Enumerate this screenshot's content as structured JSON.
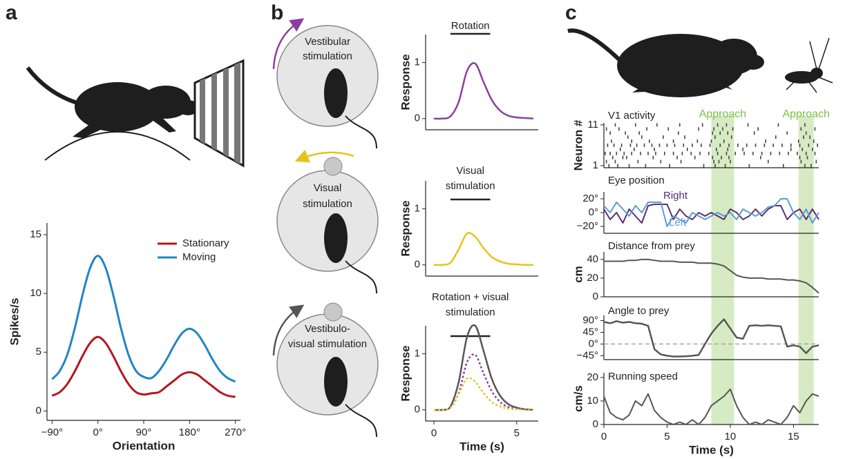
{
  "panel_labels": [
    "a",
    "b",
    "c"
  ],
  "diagram": {
    "circles": [
      [
        "Vestibular",
        "stimulation"
      ],
      [
        "Visual",
        "stimulation"
      ],
      [
        "Vestibulo-",
        "visual stimulation"
      ]
    ]
  },
  "chart_data": [
    {
      "type": "line",
      "xlabel": "Orientation",
      "ylabel": "Spikes/s",
      "legend": "upper right",
      "xlim": [
        -100,
        280
      ],
      "ylim": [
        -0.8,
        16
      ],
      "xticks": [
        {
          "value": -90,
          "label": "−90°"
        },
        {
          "value": 0,
          "label": "0°"
        },
        {
          "value": 90,
          "label": "90°"
        },
        {
          "value": 180,
          "label": "180°"
        },
        {
          "value": 270,
          "label": "270°"
        }
      ],
      "yticks": [
        0,
        5,
        10,
        15
      ],
      "x": [
        -90,
        -75,
        -60,
        -45,
        -30,
        -15,
        0,
        15,
        30,
        45,
        60,
        75,
        90,
        105,
        120,
        135,
        150,
        165,
        180,
        195,
        210,
        225,
        240,
        255,
        270
      ],
      "series": [
        {
          "name": "Stationary",
          "color": "#b5161e",
          "values": [
            1.3,
            1.6,
            2.3,
            3.4,
            4.7,
            5.8,
            6.3,
            5.8,
            4.7,
            3.4,
            2.3,
            1.6,
            1.4,
            1.5,
            1.6,
            2.1,
            2.6,
            3.1,
            3.3,
            3.1,
            2.6,
            2.1,
            1.6,
            1.3,
            1.2
          ]
        },
        {
          "name": "Moving",
          "color": "#1f84c6",
          "values": [
            2.7,
            3.4,
            4.8,
            7.1,
            9.9,
            12.2,
            13.2,
            12.2,
            9.9,
            7.1,
            4.8,
            3.4,
            2.9,
            2.8,
            3.4,
            4.4,
            5.6,
            6.6,
            7.0,
            6.6,
            5.6,
            4.4,
            3.4,
            2.8,
            2.5
          ]
        }
      ]
    },
    {
      "type": "line",
      "title": [
        "Rotation"
      ],
      "ylabel": "Response",
      "bar_x": [
        1,
        3.4
      ],
      "xlim": [
        -0.5,
        6.3
      ],
      "ylim": [
        -0.2,
        1.5
      ],
      "yticks": [
        0,
        1
      ],
      "x": [
        0,
        0.5,
        1,
        1.5,
        2,
        2.5,
        3,
        3.5,
        4,
        4.5,
        5,
        5.5,
        6
      ],
      "series": [
        {
          "color": "#8a3fa0",
          "values": [
            0,
            0,
            0.04,
            0.3,
            0.85,
            0.98,
            0.65,
            0.33,
            0.14,
            0.05,
            0.02,
            0.01,
            0
          ]
        }
      ]
    },
    {
      "type": "line",
      "title": [
        "Visual",
        "stimulation"
      ],
      "ylabel": "Response",
      "bar_x": [
        1,
        3.4
      ],
      "xlim": [
        -0.5,
        6.3
      ],
      "ylim": [
        -0.2,
        1.5
      ],
      "yticks": [
        0,
        1
      ],
      "x": [
        0,
        0.5,
        1,
        1.5,
        2,
        2.5,
        3,
        3.5,
        4,
        4.5,
        5,
        5.5,
        6
      ],
      "series": [
        {
          "color": "#e8c21c",
          "values": [
            0,
            0,
            0.04,
            0.28,
            0.56,
            0.5,
            0.3,
            0.14,
            0.06,
            0.02,
            0.01,
            0,
            0
          ]
        }
      ]
    },
    {
      "type": "line",
      "title": [
        "Rotation + visual",
        "stimulation"
      ],
      "ylabel": "Response",
      "xlabel": "Time (s)",
      "bar_x": [
        1,
        3.4
      ],
      "xlim": [
        -0.5,
        6.3
      ],
      "ylim": [
        -0.2,
        1.5
      ],
      "yticks": [
        0,
        1
      ],
      "xticks": [
        0,
        5
      ],
      "x": [
        0,
        0.5,
        1,
        1.5,
        2,
        2.5,
        3,
        3.5,
        4,
        4.5,
        5,
        5.5,
        6
      ],
      "series": [
        {
          "color": "#555555",
          "values": [
            0,
            0,
            0.06,
            0.5,
            1.3,
            1.5,
            1.05,
            0.55,
            0.25,
            0.1,
            0.04,
            0.01,
            0
          ]
        },
        {
          "color": "#8a3fa0",
          "dash": true,
          "values": [
            0,
            0,
            0.04,
            0.3,
            0.85,
            0.98,
            0.65,
            0.33,
            0.14,
            0.05,
            0.02,
            0.01,
            0
          ]
        },
        {
          "color": "#e8c21c",
          "dash": true,
          "values": [
            0,
            0,
            0.04,
            0.28,
            0.56,
            0.5,
            0.3,
            0.14,
            0.06,
            0.02,
            0.01,
            0,
            0
          ]
        }
      ]
    },
    {
      "type": "raster",
      "title": [
        "V1 activity"
      ],
      "ylabel": "Neuron #",
      "shaded": [
        [
          8.5,
          10.3
        ],
        [
          15.4,
          16.6
        ]
      ],
      "shade_label": "Approach",
      "shade_color": "#cfe8b8",
      "xlim": [
        0,
        17
      ],
      "ylim": [
        0.5,
        11.5
      ],
      "yticks": [
        1,
        11
      ],
      "spikes": [
        [
          0.4,
          1.1,
          2.0,
          3.3,
          5.2,
          7.9,
          8.8,
          9.6,
          11.5,
          14.2,
          15.9,
          16.4
        ],
        [
          0.2,
          0.9,
          2.7,
          4.5,
          6.1,
          8.7,
          9.1,
          10.0,
          13.0,
          15.6,
          16.8
        ],
        [
          0.7,
          1.5,
          1.8,
          3.9,
          5.8,
          7.2,
          8.6,
          9.3,
          9.9,
          12.4,
          15.5,
          16.1
        ],
        [
          0.1,
          0.5,
          1.0,
          1.6,
          2.2,
          2.9,
          3.5,
          4.1,
          4.8,
          5.5,
          6.2,
          6.9,
          7.6,
          8.3,
          9.0,
          9.7,
          10.4,
          11.1,
          11.8,
          12.5,
          13.2,
          13.9,
          14.6,
          15.3,
          16.0,
          16.7
        ],
        [
          1.3,
          2.4,
          4.0,
          6.6,
          8.9,
          9.8,
          11.0,
          14.8,
          15.7,
          16.5
        ],
        [
          0.3,
          0.8,
          1.4,
          2.1,
          2.6,
          3.2,
          3.8,
          4.4,
          5.0,
          5.6,
          6.3,
          7.0,
          7.7,
          8.4,
          9.2,
          9.9,
          10.6,
          11.3,
          12.0,
          12.7,
          13.4,
          14.1,
          14.8,
          15.5,
          16.2,
          16.9
        ],
        [
          0.6,
          2.2,
          3.6,
          5.5,
          7.4,
          8.5,
          9.5,
          12.8,
          15.4,
          16.6
        ],
        [
          1.9,
          3.0,
          4.7,
          6.4,
          8.8,
          10.1,
          13.6,
          15.8,
          16.3
        ],
        [
          0.5,
          1.7,
          2.8,
          5.9,
          8.6,
          9.2,
          9.8,
          11.9,
          14.5,
          16.0
        ],
        [
          0.2,
          1.2,
          3.4,
          5.1,
          7.5,
          8.7,
          9.4,
          10.2,
          12.2,
          15.6,
          16.7
        ],
        [
          0.9,
          2.5,
          4.2,
          6.0,
          7.8,
          9.0,
          9.7,
          11.4,
          13.8,
          15.9
        ]
      ]
    },
    {
      "type": "line",
      "title": [
        "Eye position"
      ],
      "xlim": [
        0,
        17
      ],
      "ylim": [
        -30,
        30
      ],
      "yticks": [
        {
          "value": -20,
          "label": "−20°"
        },
        {
          "value": 0,
          "label": "0°"
        },
        {
          "value": 20,
          "label": "20°"
        }
      ],
      "x": [
        0,
        0.5,
        1,
        1.5,
        2,
        2.5,
        3,
        3.5,
        4,
        4.5,
        5,
        5.5,
        6,
        6.5,
        7,
        7.5,
        8,
        8.5,
        9,
        9.5,
        10,
        10.5,
        11,
        11.5,
        12,
        12.5,
        13,
        13.5,
        14,
        14.5,
        15,
        15.5,
        16,
        16.5,
        17
      ],
      "series": [
        {
          "name": "Right",
          "color": "#5b2c6f",
          "values": [
            5,
            -10,
            0,
            -15,
            5,
            -5,
            -15,
            10,
            12,
            12,
            12,
            -10,
            5,
            -5,
            -10,
            0,
            -5,
            0,
            -5,
            -10,
            5,
            0,
            -10,
            -5,
            5,
            -5,
            5,
            10,
            10,
            -10,
            0,
            5,
            -10,
            5,
            -10
          ]
        },
        {
          "name": "Left",
          "color": "#5b9bd5",
          "values": [
            10,
            0,
            15,
            5,
            -5,
            10,
            0,
            15,
            15,
            15,
            -20,
            -5,
            -10,
            -15,
            0,
            -5,
            -10,
            -5,
            0,
            -5,
            0,
            -10,
            5,
            0,
            -5,
            0,
            8,
            10,
            20,
            20,
            0,
            -10,
            5,
            -15,
            0
          ]
        }
      ]
    },
    {
      "type": "line",
      "title": [
        "Distance from prey"
      ],
      "ylabel": "cm",
      "xlim": [
        0,
        17
      ],
      "ylim": [
        0,
        48
      ],
      "yticks": [
        0,
        20,
        40
      ],
      "x": [
        0,
        0.5,
        1,
        1.5,
        2,
        2.5,
        3,
        3.5,
        4,
        4.5,
        5,
        5.5,
        6,
        6.5,
        7,
        7.5,
        8,
        8.5,
        9,
        9.5,
        10,
        10.5,
        11,
        11.5,
        12,
        12.5,
        13,
        13.5,
        14,
        14.5,
        15,
        15.5,
        16,
        16.5,
        17
      ],
      "series": [
        {
          "color": "#555555",
          "values": [
            38,
            38,
            38,
            38,
            39,
            39,
            40,
            40,
            39,
            38,
            38,
            38,
            37,
            37,
            37,
            36,
            36,
            36,
            35,
            33,
            28,
            23,
            21,
            20,
            20,
            20,
            19,
            19,
            19,
            18,
            18,
            17,
            15,
            10,
            4
          ]
        }
      ]
    },
    {
      "type": "line",
      "title": [
        "Angle to prey"
      ],
      "zero_line": true,
      "xlim": [
        0,
        17
      ],
      "ylim": [
        -60,
        110
      ],
      "yticks": [
        {
          "value": -45,
          "label": "−45°"
        },
        {
          "value": 0,
          "label": "0°"
        },
        {
          "value": 45,
          "label": "45°"
        },
        {
          "value": 90,
          "label": "90°"
        }
      ],
      "x": [
        0,
        0.5,
        1,
        1.5,
        2,
        2.5,
        3,
        3.5,
        4,
        4.5,
        5,
        5.5,
        6,
        6.5,
        7,
        7.5,
        8,
        8.5,
        9,
        9.5,
        10,
        10.5,
        11,
        11.5,
        12,
        12.5,
        13,
        13.5,
        14,
        14.5,
        15,
        15.5,
        16,
        16.5,
        17
      ],
      "series": [
        {
          "color": "#555555",
          "values": [
            85,
            80,
            88,
            82,
            85,
            80,
            78,
            70,
            -20,
            -40,
            -45,
            -48,
            -48,
            -47,
            -45,
            -42,
            0,
            40,
            70,
            95,
            60,
            25,
            20,
            70,
            72,
            70,
            72,
            70,
            68,
            -10,
            -5,
            -10,
            -35,
            -10,
            -5
          ]
        }
      ]
    },
    {
      "type": "line",
      "title": [
        "Running speed"
      ],
      "ylabel": "cm/s",
      "xlabel": "Time (s)",
      "xlim": [
        0,
        17
      ],
      "ylim": [
        0,
        22
      ],
      "yticks": [
        0,
        10,
        20
      ],
      "xticks": [
        0,
        5,
        10,
        15
      ],
      "x": [
        0,
        0.5,
        1,
        1.5,
        2,
        2.5,
        3,
        3.5,
        4,
        4.5,
        5,
        5.5,
        6,
        6.5,
        7,
        7.5,
        8,
        8.5,
        9,
        9.5,
        10,
        10.5,
        11,
        11.5,
        12,
        12.5,
        13,
        13.5,
        14,
        14.5,
        15,
        15.5,
        16,
        16.5,
        17
      ],
      "series": [
        {
          "color": "#555555",
          "values": [
            12,
            5,
            3,
            2,
            4,
            10,
            8,
            13,
            6,
            3,
            1,
            0,
            1,
            0,
            2,
            0,
            3,
            8,
            10,
            12,
            15,
            8,
            3,
            0,
            1,
            0,
            2,
            1,
            0,
            3,
            8,
            5,
            10,
            13,
            12
          ]
        }
      ]
    }
  ]
}
